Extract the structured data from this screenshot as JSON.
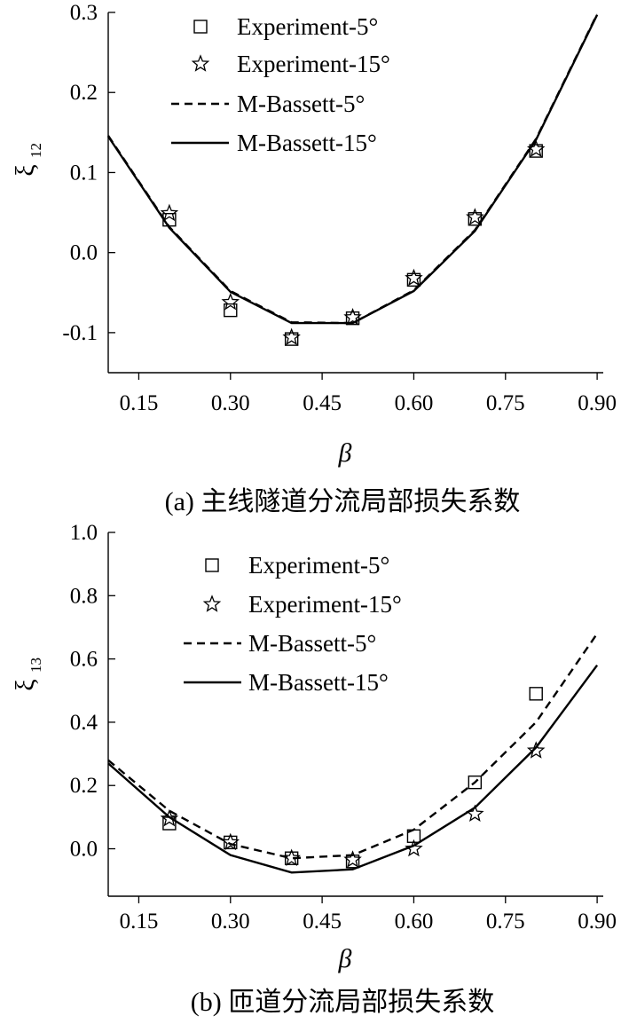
{
  "chart_data": [
    {
      "type": "line",
      "panel_label": "(a) 主线隧道分流局部损失系数",
      "xlabel": "β",
      "ylabel_main": "ξ",
      "ylabel_sub": "12",
      "xlim": [
        0.1,
        0.91
      ],
      "ylim": [
        -0.15,
        0.3
      ],
      "x_ticks": [
        0.15,
        0.3,
        0.45,
        0.6,
        0.75,
        0.9
      ],
      "x_tick_labels": [
        "0.15",
        "0.30",
        "0.45",
        "0.60",
        "0.75",
        "0.90"
      ],
      "y_ticks": [
        -0.1,
        0.0,
        0.1,
        0.2,
        0.3
      ],
      "y_tick_labels": [
        "-0.1",
        "0.0",
        "0.1",
        "0.2",
        "0.3"
      ],
      "legend_position": "top-center",
      "series": [
        {
          "name": "Experiment-5°",
          "style": "square-marker",
          "x": [
            0.2,
            0.3,
            0.4,
            0.5,
            0.6,
            0.7,
            0.8
          ],
          "y": [
            0.041,
            -0.072,
            -0.108,
            -0.082,
            -0.034,
            0.042,
            0.127
          ]
        },
        {
          "name": "Experiment-15°",
          "style": "star-marker",
          "x": [
            0.2,
            0.3,
            0.4,
            0.5,
            0.6,
            0.7,
            0.8
          ],
          "y": [
            0.049,
            -0.062,
            -0.106,
            -0.081,
            -0.032,
            0.044,
            0.129
          ]
        },
        {
          "name": "M-Bassett-5°",
          "style": "dashed-line",
          "x": [
            0.1,
            0.2,
            0.3,
            0.4,
            0.5,
            0.6,
            0.7,
            0.8,
            0.9
          ],
          "y": [
            0.146,
            0.032,
            -0.048,
            -0.087,
            -0.088,
            -0.047,
            0.028,
            0.142,
            0.298
          ]
        },
        {
          "name": "M-Bassett-15°",
          "style": "solid-line",
          "x": [
            0.1,
            0.2,
            0.3,
            0.4,
            0.5,
            0.6,
            0.7,
            0.8,
            0.9
          ],
          "y": [
            0.145,
            0.031,
            -0.049,
            -0.088,
            -0.088,
            -0.048,
            0.027,
            0.141,
            0.297
          ]
        }
      ]
    },
    {
      "type": "line",
      "panel_label": "(b) 匝道分流局部损失系数",
      "xlabel": "β",
      "ylabel_main": "ξ",
      "ylabel_sub": "13",
      "xlim": [
        0.1,
        0.91
      ],
      "ylim": [
        -0.15,
        1.0
      ],
      "x_ticks": [
        0.15,
        0.3,
        0.45,
        0.6,
        0.75,
        0.9
      ],
      "x_tick_labels": [
        "0.15",
        "0.30",
        "0.45",
        "0.60",
        "0.75",
        "0.90"
      ],
      "y_ticks": [
        0.0,
        0.2,
        0.4,
        0.6,
        0.8,
        1.0
      ],
      "y_tick_labels": [
        "0.0",
        "0.2",
        "0.4",
        "0.6",
        "0.8",
        "1.0"
      ],
      "legend_position": "top-center",
      "series": [
        {
          "name": "Experiment-5°",
          "style": "square-marker",
          "x": [
            0.2,
            0.3,
            0.4,
            0.5,
            0.6,
            0.7,
            0.8
          ],
          "y": [
            0.08,
            0.02,
            -0.03,
            -0.04,
            0.04,
            0.21,
            0.49
          ]
        },
        {
          "name": "Experiment-15°",
          "style": "star-marker",
          "x": [
            0.2,
            0.3,
            0.4,
            0.5,
            0.6,
            0.7,
            0.8
          ],
          "y": [
            0.095,
            0.02,
            -0.03,
            -0.035,
            0.0,
            0.11,
            0.31
          ]
        },
        {
          "name": "M-Bassett-5°",
          "style": "dashed-line",
          "x": [
            0.1,
            0.2,
            0.3,
            0.4,
            0.5,
            0.6,
            0.7,
            0.8,
            0.9
          ],
          "y": [
            0.28,
            0.12,
            0.015,
            -0.03,
            -0.02,
            0.06,
            0.21,
            0.4,
            0.68
          ]
        },
        {
          "name": "M-Bassett-15°",
          "style": "solid-line",
          "x": [
            0.1,
            0.2,
            0.3,
            0.4,
            0.5,
            0.6,
            0.7,
            0.8,
            0.9
          ],
          "y": [
            0.27,
            0.1,
            -0.02,
            -0.075,
            -0.065,
            0.01,
            0.13,
            0.32,
            0.58
          ]
        }
      ]
    }
  ]
}
